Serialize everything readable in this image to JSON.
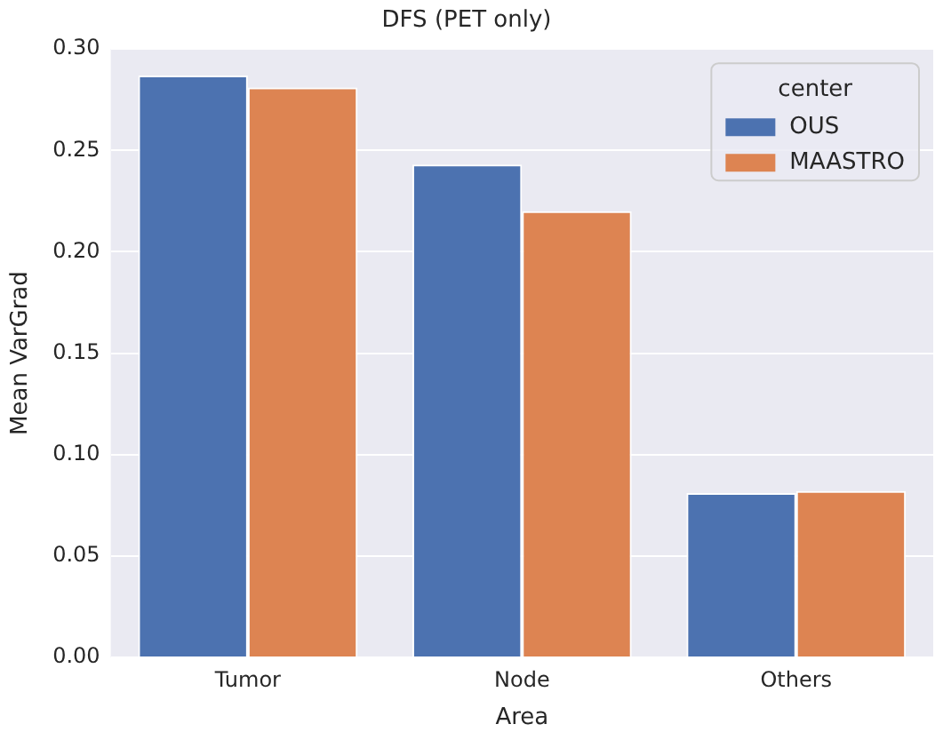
{
  "chart_data": {
    "type": "bar",
    "title": "DFS (PET only)",
    "xlabel": "Area",
    "ylabel": "Mean VarGrad",
    "legend_title": "center",
    "categories": [
      "Tumor",
      "Node",
      "Others"
    ],
    "series": [
      {
        "name": "OUS",
        "color": "#4c72b0",
        "values": [
          0.287,
          0.243,
          0.081
        ]
      },
      {
        "name": "MAASTRO",
        "color": "#dd8452",
        "values": [
          0.281,
          0.22,
          0.082
        ]
      }
    ],
    "ylim": [
      0,
      0.3
    ],
    "yticks": [
      {
        "value": 0,
        "label": "0.00"
      },
      {
        "value": 0.05,
        "label": "0.05"
      },
      {
        "value": 0.1,
        "label": "0.10"
      },
      {
        "value": 0.15,
        "label": "0.15"
      },
      {
        "value": 0.2,
        "label": "0.20"
      },
      {
        "value": 0.25,
        "label": "0.25"
      },
      {
        "value": 0.3,
        "label": "0.30"
      }
    ],
    "grid": "y",
    "legend": "top right"
  }
}
